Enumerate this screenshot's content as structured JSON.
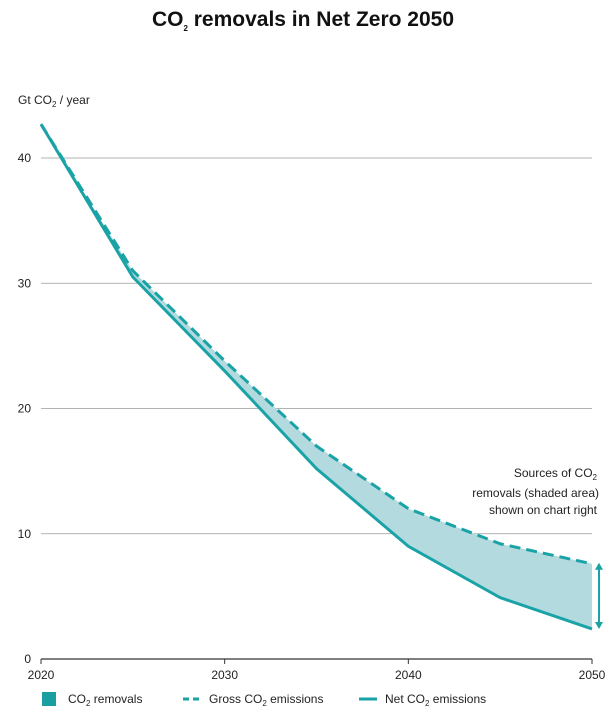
{
  "title_main": "CO",
  "title_sub": "2",
  "title_rest": " removals in Net Zero 2050",
  "ylabel_main": "Gt CO",
  "ylabel_sub": "2",
  "ylabel_rest": " / year",
  "annotation": {
    "line1_main": "Sources of CO",
    "line1_sub": "2",
    "line2": "removals (shaded area)",
    "line3": "shown on chart right"
  },
  "legend": [
    {
      "key": "removals",
      "main": "CO",
      "sub": "2",
      "rest": " removals",
      "style": "box"
    },
    {
      "key": "gross",
      "main": "Gross CO",
      "sub": "2",
      "rest": " emissions",
      "style": "dashed"
    },
    {
      "key": "net",
      "main": "Net CO",
      "sub": "2",
      "rest": " emissions",
      "style": "solid"
    }
  ],
  "colors": {
    "line": "#1aa3a6",
    "fill": "#b3dadf",
    "legend_box": "#1a9e9f",
    "grid": "#9a9a9a"
  },
  "chart_data": {
    "type": "line",
    "title": "CO2 removals in Net Zero 2050",
    "ylabel": "Gt CO2 / year",
    "xlabel": "",
    "x_ticks": [
      2020,
      2030,
      2040,
      2050
    ],
    "y_ticks": [
      0,
      10,
      20,
      30,
      40
    ],
    "xlim": [
      2020,
      2050
    ],
    "ylim": [
      0,
      40
    ],
    "grid": "horizontal",
    "legend_position": "bottom",
    "x": [
      2020,
      2025,
      2030,
      2035,
      2040,
      2045,
      2050
    ],
    "series": [
      {
        "name": "Gross CO2 emissions",
        "style": "dashed",
        "values": [
          42.7,
          31.0,
          23.8,
          17.0,
          12.0,
          9.2,
          7.6
        ]
      },
      {
        "name": "Net CO2 emissions",
        "style": "solid",
        "values": [
          42.7,
          30.5,
          23.0,
          15.2,
          9.0,
          4.9,
          2.4
        ]
      }
    ],
    "shaded_area": {
      "name": "CO2 removals",
      "between": [
        "Gross CO2 emissions",
        "Net CO2 emissions"
      ]
    }
  }
}
